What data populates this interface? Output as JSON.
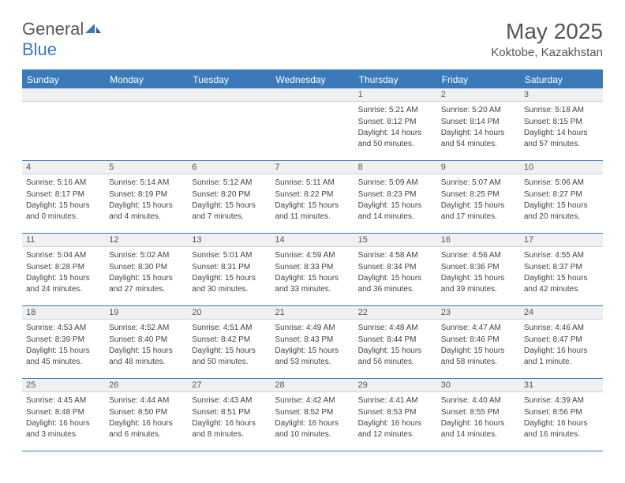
{
  "logo": {
    "general": "General",
    "blue": "Blue"
  },
  "title": "May 2025",
  "location": "Koktobe, Kazakhstan",
  "colors": {
    "brand": "#3a7ab8",
    "header_bg": "#3a7ab8",
    "header_text": "#ffffff",
    "daynum_bg": "#eef0f2",
    "border": "#3a7ab8",
    "text": "#444444",
    "title_text": "#555555"
  },
  "typography": {
    "title_fontsize": 28,
    "location_fontsize": 15,
    "dayheader_fontsize": 12,
    "daynum_fontsize": 11,
    "cell_fontsize": 10
  },
  "day_names": [
    "Sunday",
    "Monday",
    "Tuesday",
    "Wednesday",
    "Thursday",
    "Friday",
    "Saturday"
  ],
  "weeks": [
    [
      {
        "num": "",
        "sunrise": "",
        "sunset": "",
        "daylight": ""
      },
      {
        "num": "",
        "sunrise": "",
        "sunset": "",
        "daylight": ""
      },
      {
        "num": "",
        "sunrise": "",
        "sunset": "",
        "daylight": ""
      },
      {
        "num": "",
        "sunrise": "",
        "sunset": "",
        "daylight": ""
      },
      {
        "num": "1",
        "sunrise": "Sunrise: 5:21 AM",
        "sunset": "Sunset: 8:12 PM",
        "daylight": "Daylight: 14 hours and 50 minutes."
      },
      {
        "num": "2",
        "sunrise": "Sunrise: 5:20 AM",
        "sunset": "Sunset: 8:14 PM",
        "daylight": "Daylight: 14 hours and 54 minutes."
      },
      {
        "num": "3",
        "sunrise": "Sunrise: 5:18 AM",
        "sunset": "Sunset: 8:15 PM",
        "daylight": "Daylight: 14 hours and 57 minutes."
      }
    ],
    [
      {
        "num": "4",
        "sunrise": "Sunrise: 5:16 AM",
        "sunset": "Sunset: 8:17 PM",
        "daylight": "Daylight: 15 hours and 0 minutes."
      },
      {
        "num": "5",
        "sunrise": "Sunrise: 5:14 AM",
        "sunset": "Sunset: 8:19 PM",
        "daylight": "Daylight: 15 hours and 4 minutes."
      },
      {
        "num": "6",
        "sunrise": "Sunrise: 5:12 AM",
        "sunset": "Sunset: 8:20 PM",
        "daylight": "Daylight: 15 hours and 7 minutes."
      },
      {
        "num": "7",
        "sunrise": "Sunrise: 5:11 AM",
        "sunset": "Sunset: 8:22 PM",
        "daylight": "Daylight: 15 hours and 11 minutes."
      },
      {
        "num": "8",
        "sunrise": "Sunrise: 5:09 AM",
        "sunset": "Sunset: 8:23 PM",
        "daylight": "Daylight: 15 hours and 14 minutes."
      },
      {
        "num": "9",
        "sunrise": "Sunrise: 5:07 AM",
        "sunset": "Sunset: 8:25 PM",
        "daylight": "Daylight: 15 hours and 17 minutes."
      },
      {
        "num": "10",
        "sunrise": "Sunrise: 5:06 AM",
        "sunset": "Sunset: 8:27 PM",
        "daylight": "Daylight: 15 hours and 20 minutes."
      }
    ],
    [
      {
        "num": "11",
        "sunrise": "Sunrise: 5:04 AM",
        "sunset": "Sunset: 8:28 PM",
        "daylight": "Daylight: 15 hours and 24 minutes."
      },
      {
        "num": "12",
        "sunrise": "Sunrise: 5:02 AM",
        "sunset": "Sunset: 8:30 PM",
        "daylight": "Daylight: 15 hours and 27 minutes."
      },
      {
        "num": "13",
        "sunrise": "Sunrise: 5:01 AM",
        "sunset": "Sunset: 8:31 PM",
        "daylight": "Daylight: 15 hours and 30 minutes."
      },
      {
        "num": "14",
        "sunrise": "Sunrise: 4:59 AM",
        "sunset": "Sunset: 8:33 PM",
        "daylight": "Daylight: 15 hours and 33 minutes."
      },
      {
        "num": "15",
        "sunrise": "Sunrise: 4:58 AM",
        "sunset": "Sunset: 8:34 PM",
        "daylight": "Daylight: 15 hours and 36 minutes."
      },
      {
        "num": "16",
        "sunrise": "Sunrise: 4:56 AM",
        "sunset": "Sunset: 8:36 PM",
        "daylight": "Daylight: 15 hours and 39 minutes."
      },
      {
        "num": "17",
        "sunrise": "Sunrise: 4:55 AM",
        "sunset": "Sunset: 8:37 PM",
        "daylight": "Daylight: 15 hours and 42 minutes."
      }
    ],
    [
      {
        "num": "18",
        "sunrise": "Sunrise: 4:53 AM",
        "sunset": "Sunset: 8:39 PM",
        "daylight": "Daylight: 15 hours and 45 minutes."
      },
      {
        "num": "19",
        "sunrise": "Sunrise: 4:52 AM",
        "sunset": "Sunset: 8:40 PM",
        "daylight": "Daylight: 15 hours and 48 minutes."
      },
      {
        "num": "20",
        "sunrise": "Sunrise: 4:51 AM",
        "sunset": "Sunset: 8:42 PM",
        "daylight": "Daylight: 15 hours and 50 minutes."
      },
      {
        "num": "21",
        "sunrise": "Sunrise: 4:49 AM",
        "sunset": "Sunset: 8:43 PM",
        "daylight": "Daylight: 15 hours and 53 minutes."
      },
      {
        "num": "22",
        "sunrise": "Sunrise: 4:48 AM",
        "sunset": "Sunset: 8:44 PM",
        "daylight": "Daylight: 15 hours and 56 minutes."
      },
      {
        "num": "23",
        "sunrise": "Sunrise: 4:47 AM",
        "sunset": "Sunset: 8:46 PM",
        "daylight": "Daylight: 15 hours and 58 minutes."
      },
      {
        "num": "24",
        "sunrise": "Sunrise: 4:46 AM",
        "sunset": "Sunset: 8:47 PM",
        "daylight": "Daylight: 16 hours and 1 minute."
      }
    ],
    [
      {
        "num": "25",
        "sunrise": "Sunrise: 4:45 AM",
        "sunset": "Sunset: 8:48 PM",
        "daylight": "Daylight: 16 hours and 3 minutes."
      },
      {
        "num": "26",
        "sunrise": "Sunrise: 4:44 AM",
        "sunset": "Sunset: 8:50 PM",
        "daylight": "Daylight: 16 hours and 6 minutes."
      },
      {
        "num": "27",
        "sunrise": "Sunrise: 4:43 AM",
        "sunset": "Sunset: 8:51 PM",
        "daylight": "Daylight: 16 hours and 8 minutes."
      },
      {
        "num": "28",
        "sunrise": "Sunrise: 4:42 AM",
        "sunset": "Sunset: 8:52 PM",
        "daylight": "Daylight: 16 hours and 10 minutes."
      },
      {
        "num": "29",
        "sunrise": "Sunrise: 4:41 AM",
        "sunset": "Sunset: 8:53 PM",
        "daylight": "Daylight: 16 hours and 12 minutes."
      },
      {
        "num": "30",
        "sunrise": "Sunrise: 4:40 AM",
        "sunset": "Sunset: 8:55 PM",
        "daylight": "Daylight: 16 hours and 14 minutes."
      },
      {
        "num": "31",
        "sunrise": "Sunrise: 4:39 AM",
        "sunset": "Sunset: 8:56 PM",
        "daylight": "Daylight: 16 hours and 16 minutes."
      }
    ]
  ]
}
